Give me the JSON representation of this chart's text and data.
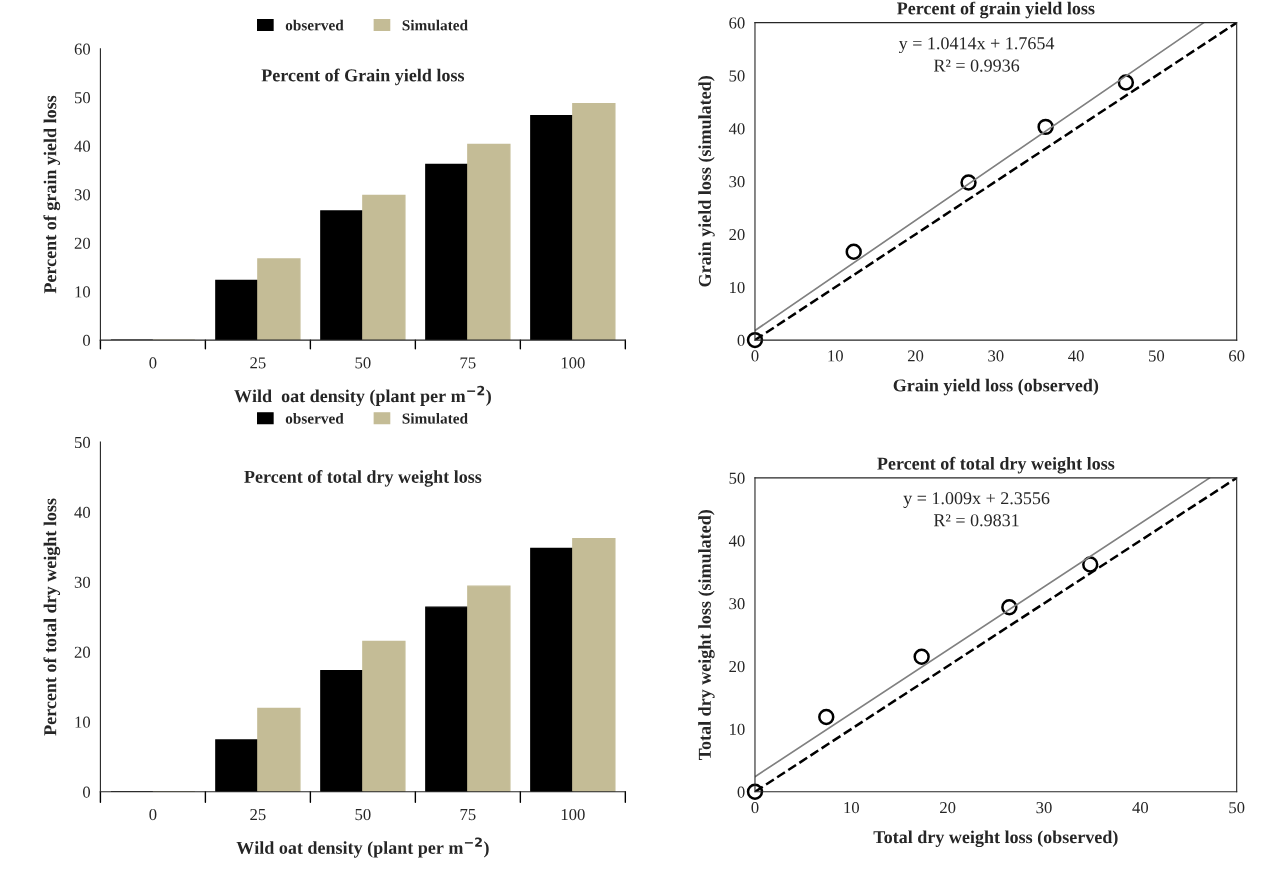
{
  "chart_data": [
    {
      "type": "bar",
      "title": "Percent of Grain yield loss",
      "xlabel": "Wild  oat density (plant per m$^{−2}$)",
      "ylabel": "Percent of grain yield loss",
      "categories": [
        "0",
        "25",
        "50",
        "75",
        "100"
      ],
      "series": [
        {
          "name": "observed",
          "color": "#000000",
          "values": [
            0,
            12.3,
            26.6,
            36.2,
            46.2
          ]
        },
        {
          "name": "Simulated",
          "color": "#c4bc96",
          "values": [
            0,
            16.7,
            29.8,
            40.3,
            48.7
          ]
        }
      ],
      "ylim": [
        0,
        60
      ],
      "yticks": [
        0,
        10,
        20,
        30,
        40,
        50,
        60
      ],
      "legend": "top",
      "grid": false
    },
    {
      "type": "scatter",
      "title": "Percent of grain yield loss",
      "xlabel": "Grain yield loss (observed)",
      "ylabel": "Grain yield loss (simulated)",
      "annotations": [
        "y = 1.0414x + 1.7654",
        "R² = 0.9936"
      ],
      "series": [
        {
          "type": "scatter",
          "x": [
            0,
            12.3,
            26.6,
            36.2,
            46.2
          ],
          "values": [
            0,
            16.7,
            29.8,
            40.3,
            48.7
          ],
          "color": "#000000",
          "marker": "circle"
        },
        {
          "type": "line",
          "x": [
            0,
            55.9
          ],
          "values": [
            1.8,
            60
          ],
          "color": "#808080",
          "line_style": "solid"
        },
        {
          "type": "line",
          "x": [
            0,
            60
          ],
          "values": [
            0,
            60
          ],
          "color": "#000000",
          "line_style": "dashed"
        }
      ],
      "xlim": [
        0,
        60
      ],
      "xticks": [
        0,
        10,
        20,
        30,
        40,
        50,
        60
      ],
      "ylim": [
        0,
        60
      ],
      "yticks": [
        0,
        10,
        20,
        30,
        40,
        50,
        60
      ],
      "grid": false
    },
    {
      "type": "bar",
      "title": "Percent of total dry weight loss",
      "xlabel": "Wild oat density (plant per m$^{−2}$)",
      "ylabel": "Percent of total dry weight loss",
      "categories": [
        "0",
        "25",
        "50",
        "75",
        "100"
      ],
      "series": [
        {
          "name": "observed",
          "color": "#000000",
          "values": [
            0,
            7.4,
            17.3,
            26.4,
            34.8
          ]
        },
        {
          "name": "Simulated",
          "color": "#c4bc96",
          "values": [
            0,
            11.9,
            21.5,
            29.4,
            36.2
          ]
        }
      ],
      "ylim": [
        0,
        50
      ],
      "yticks": [
        0,
        10,
        20,
        30,
        40,
        50
      ],
      "legend": "top",
      "grid": false
    },
    {
      "type": "scatter",
      "title": "Percent of total dry weight loss",
      "xlabel": "Total dry weight loss (observed)",
      "ylabel": "Total dry weight loss (simulated)",
      "annotations": [
        "y = 1.009x + 2.3556",
        "R² = 0.9831"
      ],
      "series": [
        {
          "type": "scatter",
          "x": [
            0,
            7.4,
            17.3,
            26.4,
            34.8
          ],
          "values": [
            0,
            11.9,
            21.5,
            29.4,
            36.2
          ],
          "color": "#000000",
          "marker": "circle"
        },
        {
          "type": "line",
          "x": [
            0,
            47.2
          ],
          "values": [
            2.4,
            50
          ],
          "color": "#808080",
          "line_style": "solid"
        },
        {
          "type": "line",
          "x": [
            0,
            50
          ],
          "values": [
            0,
            50
          ],
          "color": "#000000",
          "line_style": "dashed"
        }
      ],
      "xlim": [
        0,
        50
      ],
      "xticks": [
        0,
        10,
        20,
        30,
        40,
        50
      ],
      "ylim": [
        0,
        50
      ],
      "yticks": [
        0,
        10,
        20,
        30,
        40,
        50
      ],
      "grid": false
    }
  ]
}
